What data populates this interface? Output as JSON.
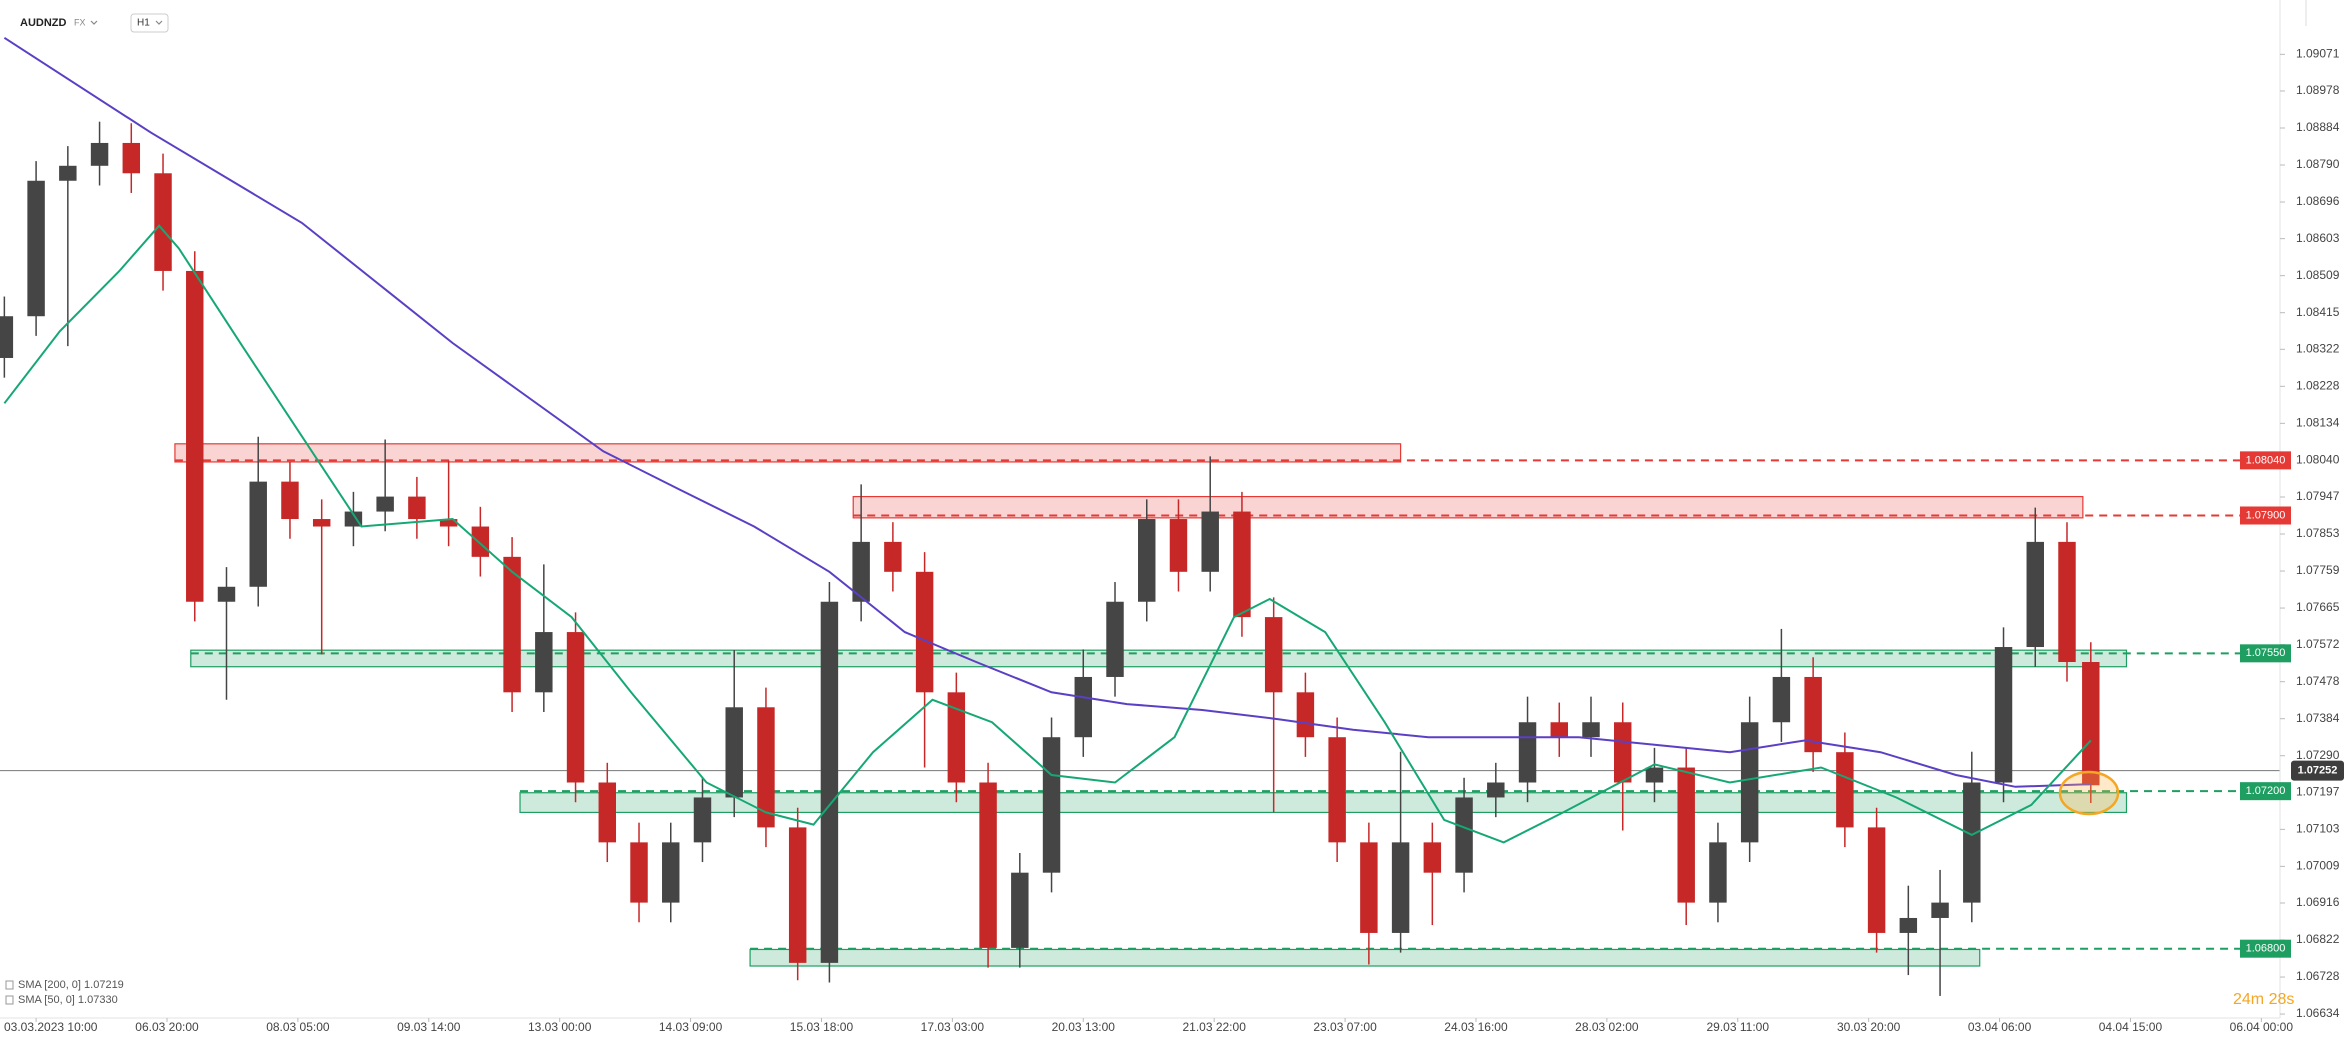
{
  "chart_data": {
    "type": "candlestick",
    "symbol": "AUDNZD",
    "market": "FX",
    "interval": "H1",
    "timer": "24m 28s",
    "up_color": "#454545",
    "down_color": "#c62828",
    "xlim": [
      -9.1,
      565.7
    ],
    "ylim": [
      1.06624,
      1.09209
    ],
    "xticks": [
      {
        "value": 0,
        "label": "03.03.2023 10:00"
      },
      {
        "value": 33,
        "label": "06.03 20:00"
      },
      {
        "value": 66,
        "label": "08.03 05:00"
      },
      {
        "value": 99,
        "label": "09.03 14:00"
      },
      {
        "value": 132,
        "label": "13.03 00:00"
      },
      {
        "value": 165,
        "label": "14.03 09:00"
      },
      {
        "value": 198,
        "label": "15.03 18:00"
      },
      {
        "value": 231,
        "label": "17.03 03:00"
      },
      {
        "value": 264,
        "label": "20.03 13:00"
      },
      {
        "value": 297,
        "label": "21.03 22:00"
      },
      {
        "value": 330,
        "label": "23.03 07:00"
      },
      {
        "value": 363,
        "label": "24.03 16:00"
      },
      {
        "value": 396,
        "label": "28.03 02:00"
      },
      {
        "value": 429,
        "label": "29.03 11:00"
      },
      {
        "value": 462,
        "label": "30.03 20:00"
      },
      {
        "value": 495,
        "label": "03.04 06:00"
      },
      {
        "value": 528,
        "label": "04.04 15:00"
      },
      {
        "value": 561,
        "label": "06.04 00:00"
      }
    ],
    "yticks": [
      1.09071,
      1.08978,
      1.08884,
      {
        "value": 1.0879,
        "label": "1.08790"
      },
      1.08696,
      1.08603,
      1.08509,
      1.08415,
      1.08322,
      1.08228,
      1.08134,
      {
        "value": 1.0804,
        "label": "1.08040"
      },
      1.07947,
      1.07853,
      1.07759,
      1.07665,
      1.07572,
      1.07478,
      1.07384,
      {
        "value": 1.0729,
        "label": "1.07290"
      },
      1.07197,
      1.07103,
      1.07009,
      1.06916,
      1.06822,
      1.06728,
      1.06634
    ],
    "x": [
      -8,
      0,
      8,
      16,
      24,
      32,
      40,
      48,
      56,
      64,
      72,
      80,
      88,
      96,
      104,
      112,
      120,
      128,
      136,
      144,
      152,
      160,
      168,
      176,
      184,
      192,
      200,
      208,
      216,
      224,
      232,
      240,
      248,
      256,
      264,
      272,
      280,
      288,
      296,
      304,
      312,
      320,
      328,
      336,
      344,
      352,
      360,
      368,
      376,
      384,
      392,
      400,
      408,
      416,
      424,
      432,
      440,
      448,
      456,
      464,
      472,
      480,
      488,
      496,
      504,
      512,
      518
    ],
    "open": [
      1.083,
      1.08406,
      1.0875,
      1.08788,
      1.08846,
      1.08769,
      1.08521,
      1.07681,
      1.07719,
      1.07986,
      1.07891,
      1.07872,
      1.0791,
      1.07948,
      1.07891,
      1.07872,
      1.07795,
      1.07451,
      1.07604,
      1.07222,
      1.0707,
      1.06917,
      1.0707,
      1.07184,
      1.07413,
      1.07108,
      1.06764,
      1.07681,
      1.07833,
      1.07757,
      1.07451,
      1.07222,
      1.06802,
      1.06993,
      1.07337,
      1.0749,
      1.07681,
      1.07891,
      1.07757,
      1.0791,
      1.07642,
      1.07451,
      1.07337,
      1.0707,
      1.0684,
      1.0707,
      1.06993,
      1.07184,
      1.07222,
      1.07375,
      1.07337,
      1.07375,
      1.07222,
      1.0726,
      1.06917,
      1.0707,
      1.07375,
      1.0749,
      1.07299,
      1.07108,
      1.0684,
      1.06878,
      1.06917,
      1.07222,
      1.07566,
      1.07833,
      1.07528
    ],
    "high": [
      1.08456,
      1.088,
      1.08838,
      1.089,
      1.08896,
      1.08819,
      1.08571,
      1.07769,
      1.081,
      1.08036,
      1.07941,
      1.0796,
      1.08093,
      1.07998,
      1.0804,
      1.07922,
      1.07845,
      1.07776,
      1.07654,
      1.07272,
      1.0712,
      1.0712,
      1.07234,
      1.07558,
      1.07463,
      1.07158,
      1.07731,
      1.07979,
      1.07883,
      1.07807,
      1.07501,
      1.07272,
      1.07043,
      1.07387,
      1.0756,
      1.07731,
      1.07941,
      1.07941,
      1.0805,
      1.0796,
      1.07692,
      1.07501,
      1.07387,
      1.0712,
      1.073,
      1.0712,
      1.07234,
      1.07272,
      1.0744,
      1.07425,
      1.0744,
      1.07425,
      1.0731,
      1.0731,
      1.0712,
      1.0744,
      1.07612,
      1.0754,
      1.07349,
      1.07158,
      1.0696,
      1.07,
      1.073,
      1.07616,
      1.0792,
      1.07883,
      1.07578
    ],
    "low": [
      1.0825,
      1.08356,
      1.0833,
      1.08738,
      1.08719,
      1.08471,
      1.07631,
      1.07432,
      1.07669,
      1.07841,
      1.07547,
      1.07822,
      1.0786,
      1.07841,
      1.07822,
      1.07745,
      1.07401,
      1.07401,
      1.07172,
      1.0702,
      1.06867,
      1.06867,
      1.0702,
      1.07134,
      1.07058,
      1.0672,
      1.06714,
      1.07631,
      1.07707,
      1.0726,
      1.07172,
      1.06752,
      1.06752,
      1.06943,
      1.07287,
      1.0744,
      1.07631,
      1.07707,
      1.07707,
      1.07592,
      1.07146,
      1.07287,
      1.0702,
      1.0676,
      1.0679,
      1.0686,
      1.06943,
      1.07134,
      1.07172,
      1.07287,
      1.07287,
      1.071,
      1.07172,
      1.0686,
      1.06867,
      1.0702,
      1.07325,
      1.07249,
      1.07058,
      1.0679,
      1.06733,
      1.0668,
      1.06867,
      1.07172,
      1.07516,
      1.07478,
      1.0717
    ],
    "close": [
      1.08406,
      1.0875,
      1.08788,
      1.08846,
      1.08769,
      1.08521,
      1.07681,
      1.07719,
      1.07986,
      1.07891,
      1.07872,
      1.0791,
      1.07948,
      1.07891,
      1.07872,
      1.07795,
      1.07451,
      1.07604,
      1.07222,
      1.0707,
      1.06917,
      1.0707,
      1.07184,
      1.07413,
      1.07108,
      1.06764,
      1.07681,
      1.07833,
      1.07757,
      1.07451,
      1.07222,
      1.06802,
      1.06993,
      1.07337,
      1.0749,
      1.07681,
      1.07891,
      1.07757,
      1.0791,
      1.07642,
      1.07451,
      1.07337,
      1.0707,
      1.0684,
      1.0707,
      1.06993,
      1.07184,
      1.07222,
      1.07375,
      1.07337,
      1.07375,
      1.07222,
      1.0726,
      1.06917,
      1.0707,
      1.07375,
      1.0749,
      1.07299,
      1.07108,
      1.0684,
      1.06878,
      1.06917,
      1.07222,
      1.07566,
      1.07833,
      1.07528,
      1.07215
    ],
    "overlays": [
      {
        "name": "SMA [200, 0] 1.07219",
        "color": "#5b3fc4",
        "x": [
          -8,
          29,
          67,
          105,
          143,
          162,
          181,
          200,
          219,
          237,
          256,
          275,
          294,
          313,
          332,
          351,
          370,
          389,
          408,
          427,
          446,
          465,
          484,
          499,
          518
        ],
        "values": [
          1.09113,
          1.08872,
          1.08643,
          1.08338,
          1.08063,
          1.07967,
          1.07872,
          1.07757,
          1.07604,
          1.07528,
          1.07451,
          1.07421,
          1.07406,
          1.07383,
          1.07356,
          1.07337,
          1.07337,
          1.07337,
          1.07318,
          1.07299,
          1.07329,
          1.07299,
          1.07241,
          1.07211,
          1.07218
        ]
      },
      {
        "name": "SMA [50, 0] 1.07330",
        "color": "#16a874",
        "x": [
          -8,
          6,
          21,
          31,
          36,
          52,
          67,
          82,
          105,
          120,
          135,
          150,
          169,
          184,
          196,
          211,
          226,
          241,
          256,
          272,
          287,
          302,
          311,
          325,
          340,
          355,
          370,
          385,
          408,
          427,
          450,
          469,
          488,
          503,
          518
        ],
        "values": [
          1.08185,
          1.08368,
          1.08521,
          1.08636,
          1.08578,
          1.0833,
          1.08101,
          1.07872,
          1.07891,
          1.07757,
          1.07642,
          1.07451,
          1.07222,
          1.07146,
          1.07115,
          1.07299,
          1.07432,
          1.07375,
          1.07241,
          1.07222,
          1.07337,
          1.07642,
          1.07688,
          1.07604,
          1.07375,
          1.07127,
          1.0707,
          1.07146,
          1.07268,
          1.07222,
          1.0726,
          1.07184,
          1.07089,
          1.07165,
          1.07329
        ]
      }
    ],
    "zones": [
      {
        "color": "#e53935",
        "x": [
          35,
          344
        ],
        "low": 1.08036,
        "high": 1.08082,
        "level": {
          "value": 1.0804,
          "label": "1.08040"
        }
      },
      {
        "color": "#e53935",
        "x": [
          206,
          516
        ],
        "low": 1.07894,
        "high": 1.07948,
        "level": {
          "value": 1.079,
          "label": "1.07900"
        }
      },
      {
        "color": "#1e9e61",
        "x": [
          39,
          527
        ],
        "low": 1.07516,
        "high": 1.07558,
        "level": {
          "value": 1.0755,
          "label": "1.07550"
        }
      },
      {
        "color": "#1e9e61",
        "x": [
          122,
          527
        ],
        "low": 1.07146,
        "high": 1.07196,
        "level": {
          "value": 1.072,
          "label": "1.07200"
        }
      },
      {
        "color": "#1e9e61",
        "x": [
          180,
          490
        ],
        "low": 1.06756,
        "high": 1.06798,
        "level": {
          "value": 1.068,
          "label": "1.06800"
        }
      }
    ],
    "last_price": 1.07252
  }
}
